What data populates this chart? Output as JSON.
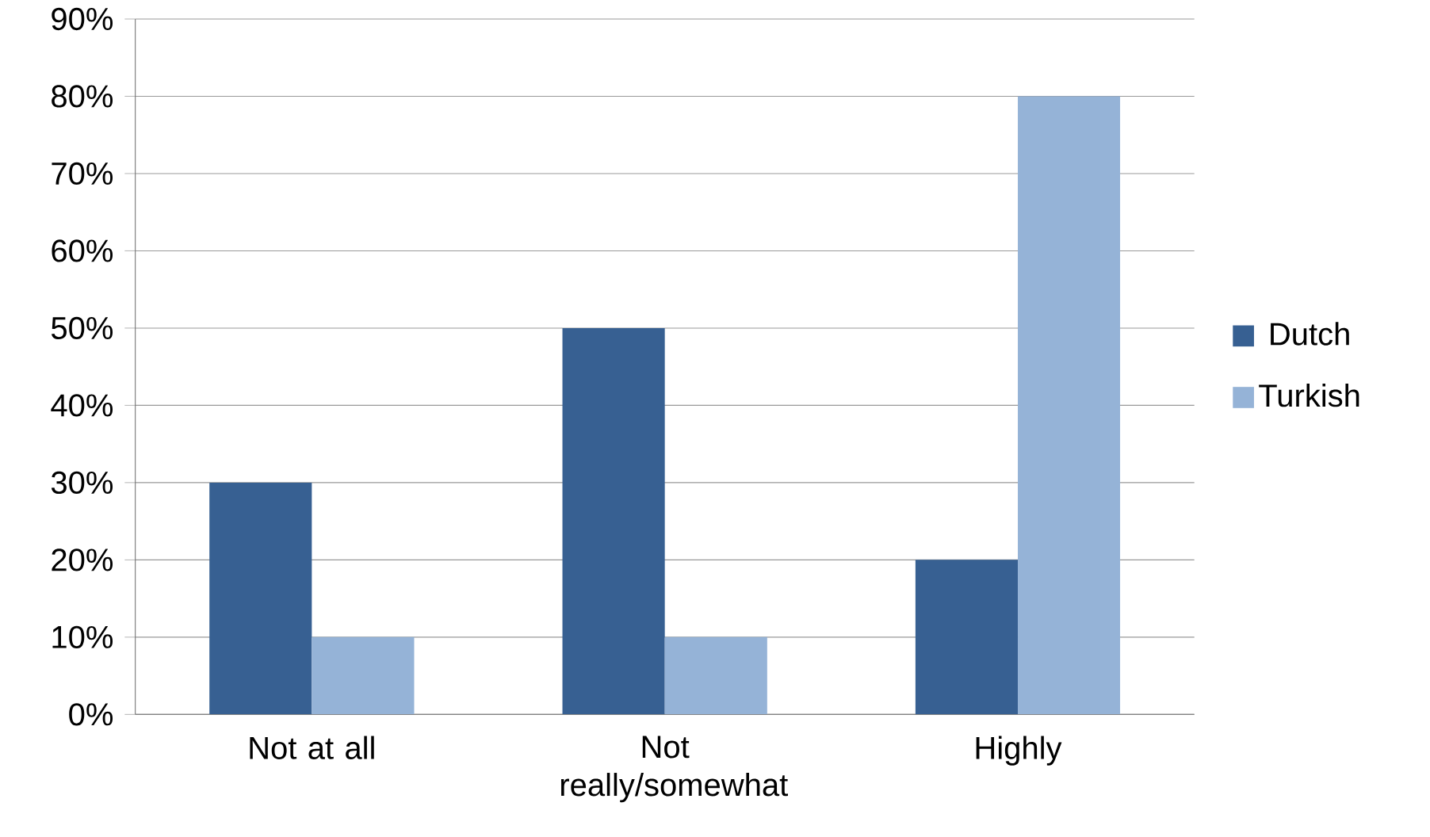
{
  "chart_data": {
    "type": "bar",
    "categories": [
      "Not at all",
      "Not really/somewhat",
      "Highly"
    ],
    "series": [
      {
        "name": "Dutch",
        "color": "#376092",
        "values": [
          30,
          50,
          20
        ]
      },
      {
        "name": "Turkish",
        "color": "#95b3d7",
        "values": [
          10,
          10,
          80
        ]
      }
    ],
    "ylim": [
      0,
      90
    ],
    "yticks": [
      {
        "value": 0,
        "label": "0%"
      },
      {
        "value": 10,
        "label": "10%"
      },
      {
        "value": 20,
        "label": "20%"
      },
      {
        "value": 30,
        "label": "30%"
      },
      {
        "value": 40,
        "label": "40%"
      },
      {
        "value": 50,
        "label": "50%"
      },
      {
        "value": 60,
        "label": "60%"
      },
      {
        "value": 70,
        "label": "70%"
      },
      {
        "value": 80,
        "label": "80%"
      },
      {
        "value": 90,
        "label": "90%"
      }
    ],
    "grid": "y",
    "legend": "right"
  }
}
